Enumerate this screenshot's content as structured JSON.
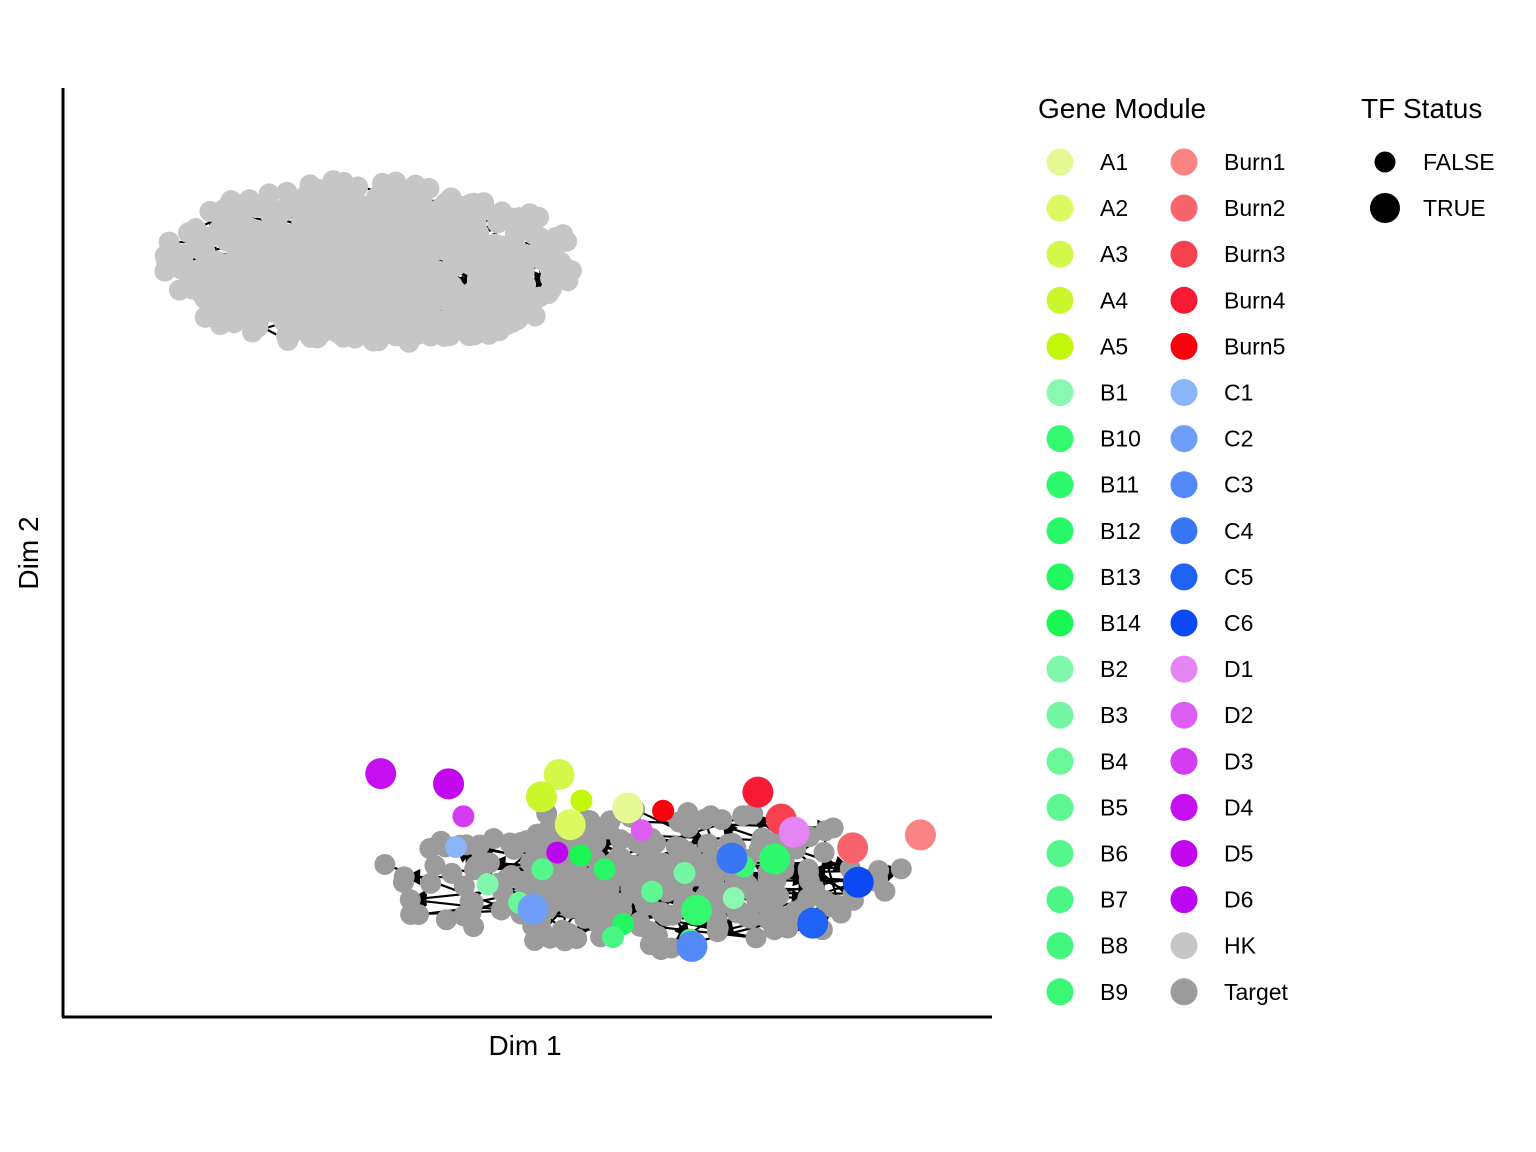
{
  "chart_data": {
    "type": "scatter",
    "title": "",
    "xlabel": "Dim 1",
    "ylabel": "Dim 2",
    "xlim": [
      0,
      100
    ],
    "ylim": [
      0,
      100
    ],
    "ticks_shown": false,
    "grid": false,
    "edges": "black arrows between points (network graph)",
    "clusters": [
      {
        "label": "HK",
        "center": [
          33,
          81
        ],
        "spread": [
          22,
          9
        ],
        "approx_points": 900
      },
      {
        "label": "Target",
        "center": [
          62,
          15
        ],
        "spread": [
          28,
          8
        ],
        "approx_points": 320
      }
    ],
    "highlighted_points": [
      {
        "module": "A1",
        "x": 60.8,
        "y": 22.5,
        "tf": true
      },
      {
        "module": "A2",
        "x": 54.6,
        "y": 20.7,
        "tf": true
      },
      {
        "module": "A3",
        "x": 53.4,
        "y": 26.1,
        "tf": true
      },
      {
        "module": "A4",
        "x": 51.5,
        "y": 23.7,
        "tf": true
      },
      {
        "module": "A5",
        "x": 55.8,
        "y": 23.3,
        "tf": false
      },
      {
        "module": "B1",
        "x": 72.2,
        "y": 12.8,
        "tf": false
      },
      {
        "module": "B10",
        "x": 68.2,
        "y": 11.5,
        "tf": true
      },
      {
        "module": "B11",
        "x": 76.6,
        "y": 17.0,
        "tf": true
      },
      {
        "module": "B12",
        "x": 58.3,
        "y": 15.9,
        "tf": false
      },
      {
        "module": "B13",
        "x": 60.3,
        "y": 10.0,
        "tf": false
      },
      {
        "module": "B14",
        "x": 55.7,
        "y": 17.4,
        "tf": false
      },
      {
        "module": "B2",
        "x": 45.7,
        "y": 14.3,
        "tf": false
      },
      {
        "module": "B3",
        "x": 66.9,
        "y": 15.5,
        "tf": false
      },
      {
        "module": "B4",
        "x": 49.1,
        "y": 12.3,
        "tf": false
      },
      {
        "module": "B5",
        "x": 63.4,
        "y": 13.5,
        "tf": false
      },
      {
        "module": "B6",
        "x": 51.6,
        "y": 15.9,
        "tf": false
      },
      {
        "module": "B7",
        "x": 59.2,
        "y": 8.6,
        "tf": false
      },
      {
        "module": "B8",
        "x": 67.5,
        "y": 8.3,
        "tf": false
      },
      {
        "module": "B9",
        "x": 73.3,
        "y": 16.2,
        "tf": false
      },
      {
        "module": "Burn1",
        "x": 92.3,
        "y": 19.6,
        "tf": true
      },
      {
        "module": "Burn2",
        "x": 85.0,
        "y": 18.2,
        "tf": true
      },
      {
        "module": "Burn3",
        "x": 77.3,
        "y": 21.3,
        "tf": true
      },
      {
        "module": "Burn4",
        "x": 74.8,
        "y": 24.2,
        "tf": true
      },
      {
        "module": "Burn5",
        "x": 64.6,
        "y": 22.2,
        "tf": false
      },
      {
        "module": "C1",
        "x": 42.3,
        "y": 18.3,
        "tf": false
      },
      {
        "module": "C2",
        "x": 50.6,
        "y": 11.6,
        "tf": true
      },
      {
        "module": "C3",
        "x": 67.7,
        "y": 7.6,
        "tf": true
      },
      {
        "module": "C4",
        "x": 72.0,
        "y": 17.1,
        "tf": true
      },
      {
        "module": "C5",
        "x": 80.7,
        "y": 10.1,
        "tf": true
      },
      {
        "module": "C6",
        "x": 85.6,
        "y": 14.5,
        "tf": true
      },
      {
        "module": "D1",
        "x": 78.7,
        "y": 19.9,
        "tf": true
      },
      {
        "module": "D2",
        "x": 62.3,
        "y": 20.1,
        "tf": false
      },
      {
        "module": "D3",
        "x": 43.1,
        "y": 21.6,
        "tf": false
      },
      {
        "module": "D4",
        "x": 34.2,
        "y": 26.2,
        "tf": true
      },
      {
        "module": "D5",
        "x": 41.5,
        "y": 25.1,
        "tf": true
      },
      {
        "module": "D6",
        "x": 53.2,
        "y": 17.7,
        "tf": false
      }
    ],
    "legend_placement": "right",
    "legend": {
      "gene_module": {
        "title": "Gene Module",
        "items": [
          {
            "label": "A1",
            "color": "#e6f994"
          },
          {
            "label": "A2",
            "color": "#dcf961"
          },
          {
            "label": "A3",
            "color": "#d3f84a"
          },
          {
            "label": "A4",
            "color": "#caf62c"
          },
          {
            "label": "A5",
            "color": "#c1f70a"
          },
          {
            "label": "B1",
            "color": "#8bf8b2"
          },
          {
            "label": "B10",
            "color": "#33f870"
          },
          {
            "label": "B11",
            "color": "#2ef86d"
          },
          {
            "label": "B12",
            "color": "#28f868"
          },
          {
            "label": "B13",
            "color": "#22f760"
          },
          {
            "label": "B14",
            "color": "#1bf752"
          },
          {
            "label": "B2",
            "color": "#80f7aa"
          },
          {
            "label": "B3",
            "color": "#74f7a2"
          },
          {
            "label": "B4",
            "color": "#6af79a"
          },
          {
            "label": "B5",
            "color": "#5ff792"
          },
          {
            "label": "B6",
            "color": "#54f78b"
          },
          {
            "label": "B7",
            "color": "#4af784"
          },
          {
            "label": "B8",
            "color": "#42f77d"
          },
          {
            "label": "B9",
            "color": "#3af776"
          },
          {
            "label": "Burn1",
            "color": "#fa8383"
          },
          {
            "label": "Burn2",
            "color": "#f9636b"
          },
          {
            "label": "Burn3",
            "color": "#f8414f"
          },
          {
            "label": "Burn4",
            "color": "#f61a34"
          },
          {
            "label": "Burn5",
            "color": "#f6030c"
          },
          {
            "label": "C1",
            "color": "#8ab5f9"
          },
          {
            "label": "C2",
            "color": "#6e9ef8"
          },
          {
            "label": "C3",
            "color": "#5289f7"
          },
          {
            "label": "C4",
            "color": "#3777f6"
          },
          {
            "label": "C5",
            "color": "#1e63f5"
          },
          {
            "label": "C6",
            "color": "#0a49f3"
          },
          {
            "label": "D1",
            "color": "#e584f3"
          },
          {
            "label": "D2",
            "color": "#dc5df2"
          },
          {
            "label": "D3",
            "color": "#d33cf1"
          },
          {
            "label": "D4",
            "color": "#c60ff0"
          },
          {
            "label": "D5",
            "color": "#c207ee"
          },
          {
            "label": "D6",
            "color": "#bc06f1"
          },
          {
            "label": "HK",
            "color": "#c6c6c6"
          },
          {
            "label": "Target",
            "color": "#9b9b9b"
          }
        ]
      },
      "tf_status": {
        "title": "TF Status",
        "items": [
          {
            "label": "FALSE",
            "size": "small"
          },
          {
            "label": "TRUE",
            "size": "large"
          }
        ]
      }
    }
  }
}
